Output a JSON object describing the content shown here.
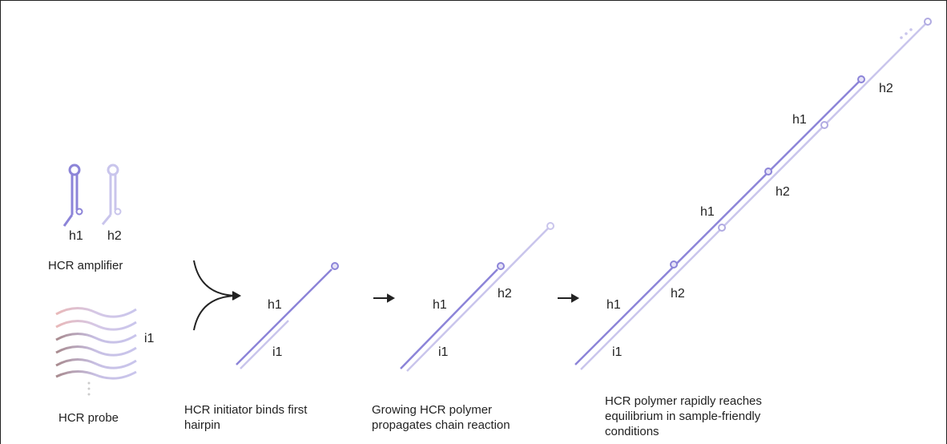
{
  "amplifier": {
    "labels": [
      "h1",
      "h2"
    ],
    "caption": "HCR amplifier"
  },
  "probe": {
    "label": "i1",
    "caption": "HCR probe"
  },
  "steps": [
    {
      "labels": [
        "h1",
        "i1"
      ],
      "caption": "HCR initiator binds first hairpin"
    },
    {
      "labels": [
        "h1",
        "h2",
        "i1"
      ],
      "caption": "Growing HCR polymer propagates chain reaction"
    },
    {
      "labels": [
        "h1",
        "h2",
        "i1",
        "h1",
        "h2",
        "h1",
        "h2"
      ],
      "caption": "HCR polymer rapidly reaches equilibrium in sample-friendly conditions"
    }
  ]
}
